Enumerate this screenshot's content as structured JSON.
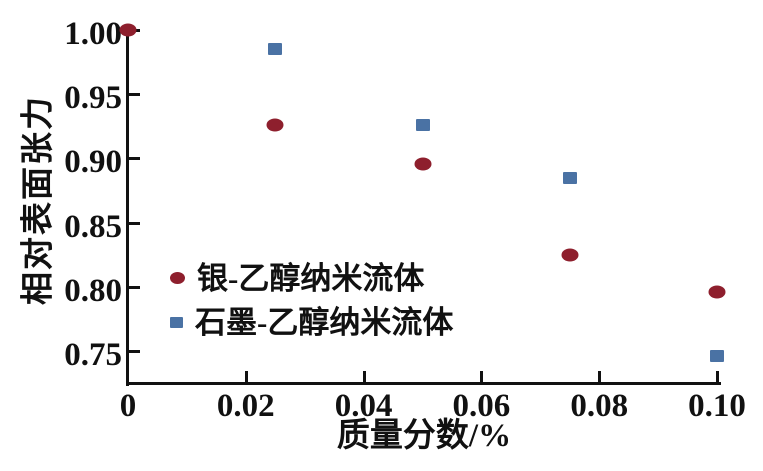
{
  "chart_data": {
    "type": "scatter",
    "title": "",
    "xlabel": "质量分数/%",
    "ylabel": "相对表面张力",
    "xlim": [
      0,
      0.1005
    ],
    "ylim": [
      0.724,
      1.002
    ],
    "grid": false,
    "legend_position": "inside-lower-left",
    "x_ticks": [
      {
        "value": 0,
        "label": "0"
      },
      {
        "value": 0.02,
        "label": "0.02"
      },
      {
        "value": 0.04,
        "label": "0.04"
      },
      {
        "value": 0.06,
        "label": "0.06"
      },
      {
        "value": 0.08,
        "label": "0.08"
      },
      {
        "value": 0.1,
        "label": "0.10"
      }
    ],
    "y_ticks": [
      {
        "value": 1.0,
        "label": "1.00"
      },
      {
        "value": 0.95,
        "label": "0.95"
      },
      {
        "value": 0.9,
        "label": "0.90"
      },
      {
        "value": 0.85,
        "label": "0.85"
      },
      {
        "value": 0.8,
        "label": "0.80"
      },
      {
        "value": 0.75,
        "label": "0.75"
      }
    ],
    "series": [
      {
        "name": "银-乙醇纳米流体",
        "marker": "circle",
        "color": "#8E1F2D",
        "points": [
          {
            "x": 0,
            "y": 1.0
          },
          {
            "x": 0.025,
            "y": 0.926
          },
          {
            "x": 0.05,
            "y": 0.896
          },
          {
            "x": 0.075,
            "y": 0.825
          },
          {
            "x": 0.1,
            "y": 0.796
          }
        ]
      },
      {
        "name": "石墨-乙醇纳米流体",
        "marker": "square",
        "color": "#4A72A4",
        "points": [
          {
            "x": 0.025,
            "y": 0.985
          },
          {
            "x": 0.05,
            "y": 0.926
          },
          {
            "x": 0.075,
            "y": 0.885
          },
          {
            "x": 0.1,
            "y": 0.746
          }
        ]
      }
    ]
  }
}
